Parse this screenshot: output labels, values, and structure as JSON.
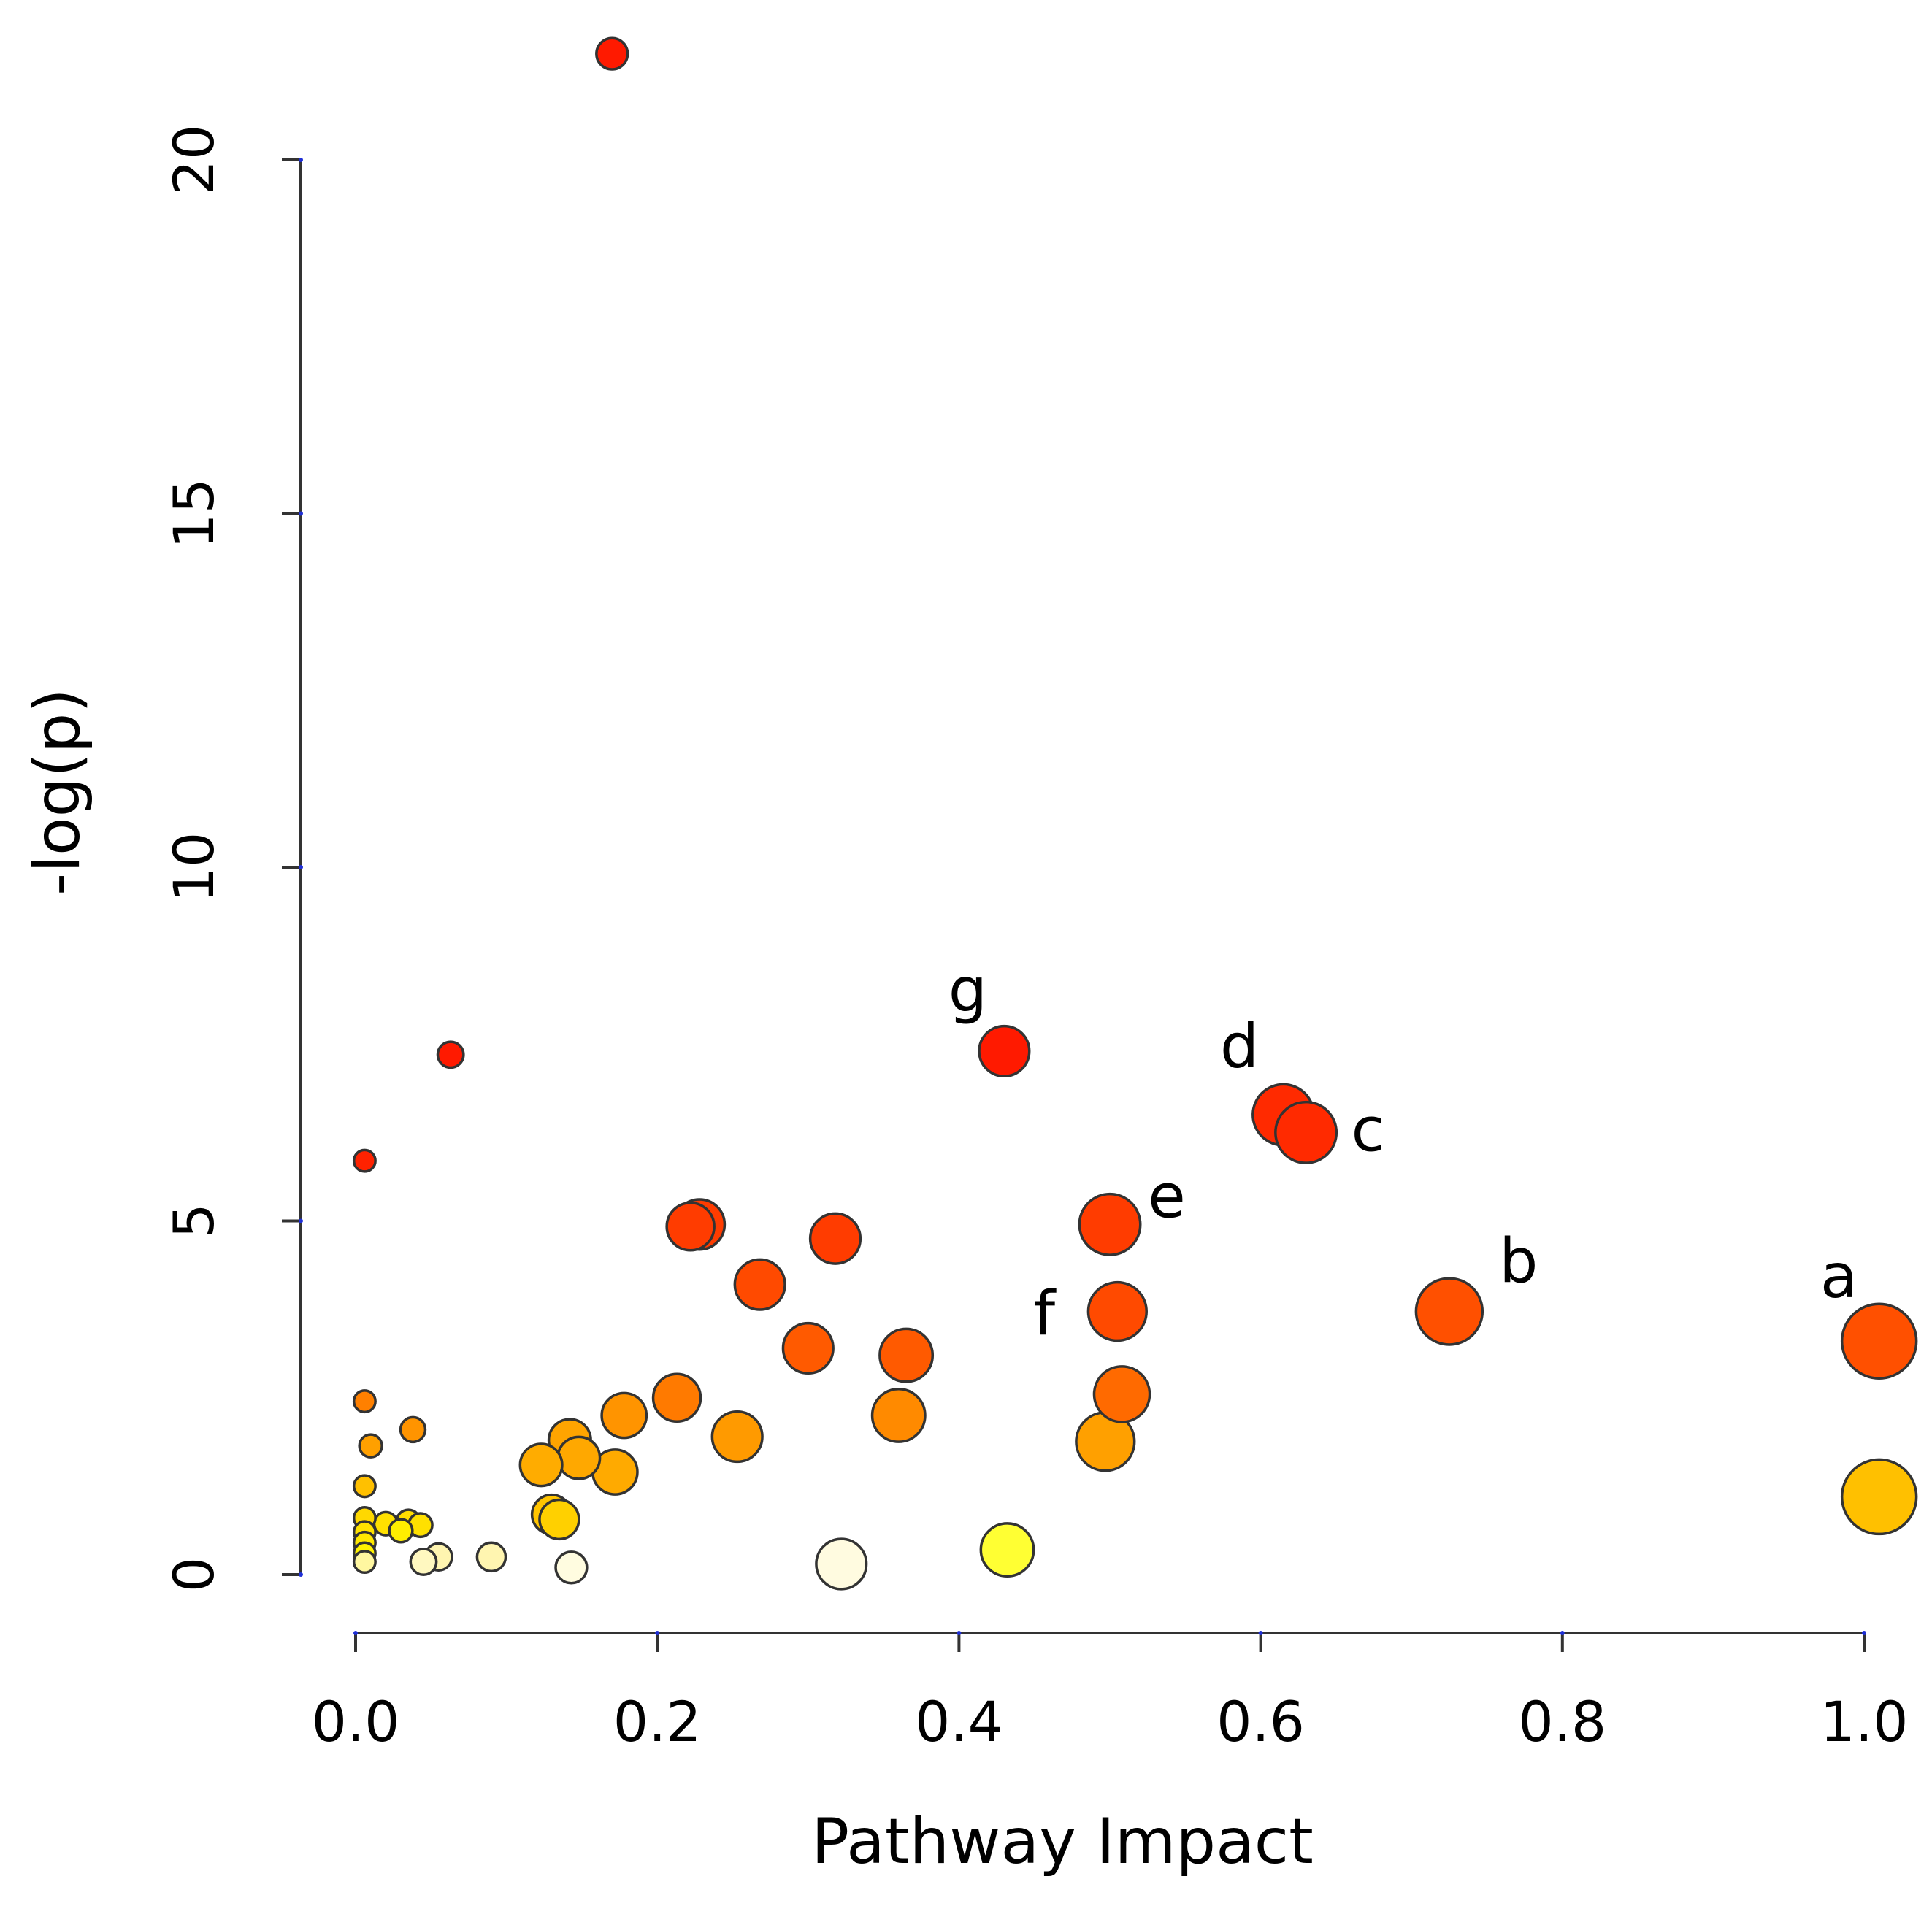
{
  "chart_data": {
    "type": "scatter",
    "title": "",
    "xlabel": "Pathway Impact",
    "ylabel": "-log(p)",
    "xlim": [
      0.0,
      1.0
    ],
    "ylim": [
      0,
      20
    ],
    "xticks": [
      "0.0",
      "0.2",
      "0.4",
      "0.6",
      "0.8",
      "1.0"
    ],
    "yticks": [
      "0",
      "5",
      "10",
      "15",
      "20"
    ],
    "grid": false,
    "legend": "none",
    "size_encoding": "pathway impact",
    "color_encoding": "-log(p), white-yellow (low) to red (high)",
    "points": [
      {
        "x": 0.17,
        "y": 21.5,
        "color": "#ff1a00",
        "size": 0.2
      },
      {
        "x": 0.063,
        "y": 7.35,
        "color": "#ff1a00",
        "size": 0.1
      },
      {
        "x": 0.006,
        "y": 5.85,
        "color": "#ff2200",
        "size": 0.02
      },
      {
        "x": 0.43,
        "y": 7.4,
        "color": "#ff1a00",
        "size": 0.55,
        "label": "g"
      },
      {
        "x": 0.615,
        "y": 6.5,
        "color": "#ff2a00",
        "size": 0.75,
        "label": "d"
      },
      {
        "x": 0.63,
        "y": 6.25,
        "color": "#ff2a00",
        "size": 0.75,
        "label": "c"
      },
      {
        "x": 0.5,
        "y": 4.95,
        "color": "#ff3c00",
        "size": 0.75,
        "label": "e"
      },
      {
        "x": 0.505,
        "y": 3.72,
        "color": "#ff4a00",
        "size": 0.7,
        "label": "f"
      },
      {
        "x": 0.725,
        "y": 3.72,
        "color": "#ff5000",
        "size": 0.85,
        "label": "b"
      },
      {
        "x": 1.01,
        "y": 3.3,
        "color": "#ff5000",
        "size": 1.0,
        "label": "a"
      },
      {
        "x": 1.01,
        "y": 1.1,
        "color": "#ffc000",
        "size": 1.0
      },
      {
        "x": 0.228,
        "y": 4.95,
        "color": "#ff3c00",
        "size": 0.55
      },
      {
        "x": 0.222,
        "y": 4.92,
        "color": "#ff3c00",
        "size": 0.5
      },
      {
        "x": 0.318,
        "y": 4.75,
        "color": "#ff3c00",
        "size": 0.55
      },
      {
        "x": 0.268,
        "y": 4.1,
        "color": "#ff4a00",
        "size": 0.55
      },
      {
        "x": 0.3,
        "y": 3.2,
        "color": "#ff5a00",
        "size": 0.55
      },
      {
        "x": 0.365,
        "y": 3.1,
        "color": "#ff5a00",
        "size": 0.6
      },
      {
        "x": 0.508,
        "y": 2.55,
        "color": "#ff6a00",
        "size": 0.65
      },
      {
        "x": 0.213,
        "y": 2.5,
        "color": "#ff7a00",
        "size": 0.5
      },
      {
        "x": 0.36,
        "y": 2.25,
        "color": "#ff8a00",
        "size": 0.6
      },
      {
        "x": 0.178,
        "y": 2.25,
        "color": "#ff9400",
        "size": 0.45
      },
      {
        "x": 0.253,
        "y": 1.95,
        "color": "#ff9a00",
        "size": 0.55
      },
      {
        "x": 0.497,
        "y": 1.88,
        "color": "#ffa000",
        "size": 0.7
      },
      {
        "x": 0.142,
        "y": 1.9,
        "color": "#ffa400",
        "size": 0.4
      },
      {
        "x": 0.148,
        "y": 1.65,
        "color": "#ffa800",
        "size": 0.4
      },
      {
        "x": 0.172,
        "y": 1.45,
        "color": "#ffaa00",
        "size": 0.45
      },
      {
        "x": 0.123,
        "y": 1.55,
        "color": "#ffac00",
        "size": 0.4
      },
      {
        "x": 0.13,
        "y": 0.85,
        "color": "#ffc400",
        "size": 0.35
      },
      {
        "x": 0.135,
        "y": 0.78,
        "color": "#ffd000",
        "size": 0.35
      },
      {
        "x": 0.038,
        "y": 2.05,
        "color": "#ff9400",
        "size": 0.08
      },
      {
        "x": 0.006,
        "y": 2.45,
        "color": "#ff8000",
        "size": 0.02
      },
      {
        "x": 0.01,
        "y": 1.82,
        "color": "#ffa000",
        "size": 0.04
      },
      {
        "x": 0.006,
        "y": 1.25,
        "color": "#ffc000",
        "size": 0.02
      },
      {
        "x": 0.006,
        "y": 0.8,
        "color": "#ffd800",
        "size": 0.02
      },
      {
        "x": 0.006,
        "y": 0.6,
        "color": "#ffe200",
        "size": 0.02
      },
      {
        "x": 0.006,
        "y": 0.45,
        "color": "#ffe800",
        "size": 0.02
      },
      {
        "x": 0.006,
        "y": 0.3,
        "color": "#fff200",
        "size": 0.02
      },
      {
        "x": 0.006,
        "y": 0.18,
        "color": "#fff7a0",
        "size": 0.02
      },
      {
        "x": 0.02,
        "y": 0.72,
        "color": "#ffe000",
        "size": 0.05
      },
      {
        "x": 0.035,
        "y": 0.75,
        "color": "#ffdc00",
        "size": 0.06
      },
      {
        "x": 0.043,
        "y": 0.7,
        "color": "#ffe000",
        "size": 0.06
      },
      {
        "x": 0.03,
        "y": 0.62,
        "color": "#ffee00",
        "size": 0.05
      },
      {
        "x": 0.055,
        "y": 0.25,
        "color": "#fff5b0",
        "size": 0.12
      },
      {
        "x": 0.045,
        "y": 0.18,
        "color": "#fff8c0",
        "size": 0.1
      },
      {
        "x": 0.09,
        "y": 0.25,
        "color": "#fff5b0",
        "size": 0.15
      },
      {
        "x": 0.143,
        "y": 0.1,
        "color": "#fffce0",
        "size": 0.2
      },
      {
        "x": 0.322,
        "y": 0.15,
        "color": "#fffbe0",
        "size": 0.55
      },
      {
        "x": 0.432,
        "y": 0.35,
        "color": "#ffff33",
        "size": 0.6
      }
    ]
  }
}
